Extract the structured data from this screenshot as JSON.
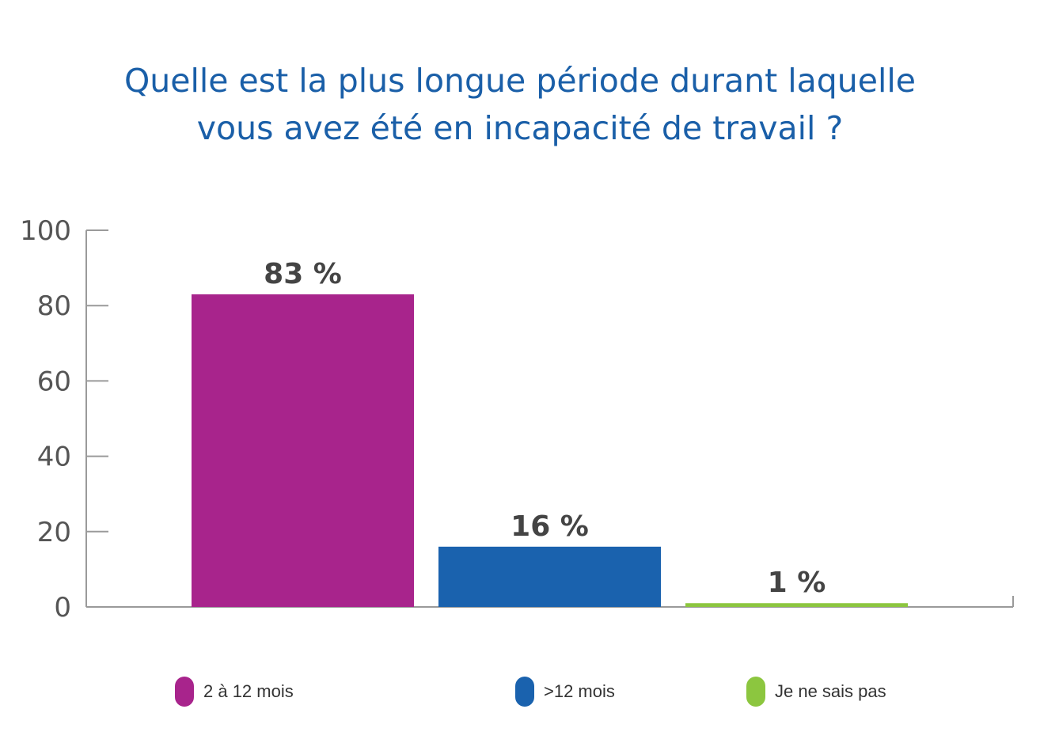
{
  "chart_data": {
    "type": "bar",
    "title": "Quelle est la plus longue période durant laquelle vous avez été en incapacité de travail ?",
    "title_lines": [
      "Quelle est la plus longue période durant laquelle",
      "vous avez été en incapacité de travail ?"
    ],
    "categories": [
      "2 à 12 mois",
      ">12 mois",
      "Je ne sais pas"
    ],
    "values": [
      83,
      16,
      1
    ],
    "data_labels": [
      "83 %",
      "16 %",
      "1 %"
    ],
    "colors": [
      "#a8248c",
      "#1a62ae",
      "#8cc63f"
    ],
    "ylim": [
      0,
      100
    ],
    "yticks": [
      0,
      20,
      40,
      60,
      80,
      100
    ],
    "ytick_labels": [
      "0",
      "20",
      "40",
      "60",
      "80",
      "100"
    ],
    "grid": false,
    "legend_placement": "bottom"
  }
}
